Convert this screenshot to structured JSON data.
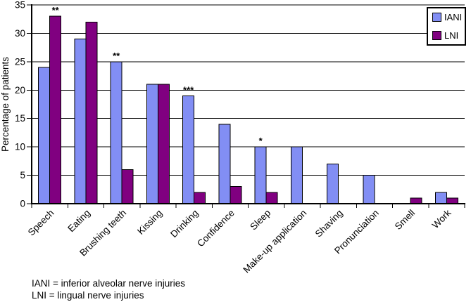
{
  "chart_data": {
    "type": "bar",
    "ylabel": "Percentage of patients",
    "xlabel": "",
    "ylim": [
      0,
      35
    ],
    "ytick_step": 5,
    "grid": true,
    "legend_position": "top-right",
    "categories": [
      "Speech",
      "Eating",
      "Brushing teeth",
      "Kissing",
      "Drinking",
      "Confidence",
      "Sleep",
      "Make-up application",
      "Shaving",
      "Pronunciation",
      "Smell",
      "Work"
    ],
    "series": [
      {
        "name": "IANI",
        "color": "#828EF4",
        "values": [
          24,
          29,
          25,
          21,
          19,
          14,
          10,
          10,
          7,
          5,
          0,
          2
        ]
      },
      {
        "name": "LNI",
        "color": "#800080",
        "values": [
          33,
          32,
          6,
          21,
          2,
          3,
          2,
          0,
          0,
          0,
          1,
          1
        ]
      }
    ],
    "annotations": [
      {
        "category": "Speech",
        "series": "LNI",
        "text": "**"
      },
      {
        "category": "Brushing teeth",
        "series": "IANI",
        "text": "**"
      },
      {
        "category": "Drinking",
        "series": "IANI",
        "text": "***"
      },
      {
        "category": "Sleep",
        "series": "IANI",
        "text": "*"
      }
    ],
    "axis_color": "#000000",
    "gridline_color": "#000000"
  },
  "footnotes": {
    "iani": "IANI = inferior alveolar nerve injuries",
    "lni": "LNI = lingual nerve injuries"
  }
}
